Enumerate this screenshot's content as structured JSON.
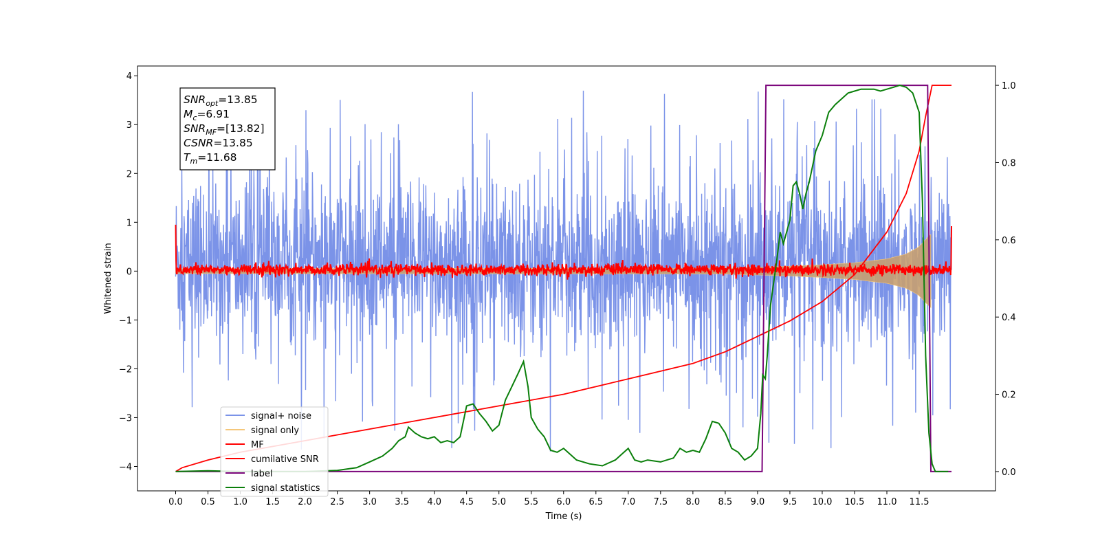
{
  "chart_data": {
    "type": "line",
    "xlabel": "Time (s)",
    "ylabel": "Whitened strain",
    "xlim": [
      -0.59,
      12.68
    ],
    "ylim": [
      -4.5,
      4.2
    ],
    "y2lim": [
      -0.05,
      1.05
    ],
    "x_ticks": [
      "0.0",
      "0.5",
      "1.0",
      "1.5",
      "2.0",
      "2.5",
      "3.0",
      "3.5",
      "4.0",
      "4.5",
      "5.0",
      "5.5",
      "6.0",
      "6.5",
      "7.0",
      "7.5",
      "8.0",
      "8.5",
      "9.0",
      "9.5",
      "10.0",
      "10.5",
      "11.0",
      "11.5"
    ],
    "y_ticks": [
      "−4",
      "−3",
      "−2",
      "−1",
      "0",
      "1",
      "2",
      "3",
      "4"
    ],
    "y2_ticks": [
      "0.0",
      "0.2",
      "0.4",
      "0.6",
      "0.8",
      "1.0"
    ],
    "legend_position": "lower left",
    "stats_box": [
      {
        "base": "SNR",
        "sub": "opt",
        "value": "=13.85"
      },
      {
        "base": "M",
        "sub": "c",
        "value": "=6.91"
      },
      {
        "base": "SNR",
        "sub": "MF",
        "value": "=[13.82]"
      },
      {
        "base": "CSNR",
        "sub": "",
        "value": "=13.85"
      },
      {
        "base": "T",
        "sub": "m",
        "value": "=11.68"
      }
    ],
    "series": [
      {
        "name": "signal+ noise",
        "color": "#7b93e8",
        "axis": "left",
        "description_values": {
          "x_range": [
            0.0,
            12.0
          ],
          "envelope": [
            -3.8,
            3.8
          ],
          "typical_band": [
            -1.6,
            1.9
          ]
        }
      },
      {
        "name": "signal only",
        "color": "#f5c77a",
        "axis": "left",
        "envelope": {
          "x": [
            0,
            8.5,
            9.0,
            9.5,
            10.0,
            10.5,
            11.0,
            11.3,
            11.5,
            11.6,
            11.68
          ],
          "amplitude": [
            0.05,
            0.06,
            0.08,
            0.1,
            0.13,
            0.17,
            0.25,
            0.35,
            0.5,
            0.65,
            0.75
          ]
        }
      },
      {
        "name": "MF",
        "color": "#ff0000",
        "axis": "left",
        "description_values": {
          "x_range": [
            0.0,
            12.0
          ],
          "band": [
            -0.1,
            0.15
          ]
        }
      },
      {
        "name": "cumilative SNR",
        "color": "#ff0000",
        "axis": "right",
        "x": [
          0,
          0.1,
          0.5,
          1.0,
          2.0,
          3.0,
          4.0,
          5.0,
          6.0,
          7.0,
          8.0,
          8.5,
          9.0,
          9.5,
          10.0,
          10.5,
          11.0,
          11.3,
          11.5,
          11.6,
          11.7,
          11.8,
          12.0
        ],
        "y": [
          0.0,
          0.01,
          0.03,
          0.05,
          0.08,
          0.11,
          0.14,
          0.17,
          0.2,
          0.24,
          0.28,
          0.31,
          0.35,
          0.39,
          0.44,
          0.51,
          0.62,
          0.72,
          0.83,
          0.92,
          1.0,
          1.0,
          1.0
        ]
      },
      {
        "name": "label",
        "color": "#7b057b",
        "axis": "right",
        "x": [
          0,
          9.07,
          9.13,
          11.63,
          11.68,
          12.0
        ],
        "y": [
          0,
          0,
          1,
          1,
          0,
          0
        ]
      },
      {
        "name": "signal statistics",
        "color": "#0a7f0a",
        "axis": "right",
        "x": [
          0,
          0.5,
          1.0,
          1.5,
          2.0,
          2.5,
          2.8,
          3.0,
          3.2,
          3.35,
          3.45,
          3.55,
          3.6,
          3.7,
          3.8,
          3.9,
          4.0,
          4.1,
          4.2,
          4.3,
          4.4,
          4.5,
          4.6,
          4.7,
          4.8,
          4.9,
          5.0,
          5.1,
          5.2,
          5.3,
          5.38,
          5.45,
          5.5,
          5.6,
          5.7,
          5.8,
          5.9,
          6.0,
          6.2,
          6.4,
          6.6,
          6.8,
          6.9,
          7.0,
          7.1,
          7.2,
          7.3,
          7.5,
          7.7,
          7.8,
          7.9,
          8.0,
          8.1,
          8.2,
          8.3,
          8.4,
          8.5,
          8.6,
          8.7,
          8.8,
          8.9,
          9.0,
          9.05,
          9.08,
          9.12,
          9.15,
          9.2,
          9.3,
          9.35,
          9.4,
          9.5,
          9.55,
          9.6,
          9.65,
          9.7,
          9.75,
          9.8,
          9.9,
          10.0,
          10.1,
          10.2,
          10.3,
          10.4,
          10.5,
          10.6,
          10.7,
          10.8,
          10.9,
          11.0,
          11.1,
          11.2,
          11.3,
          11.4,
          11.5,
          11.55,
          11.6,
          11.65,
          11.7,
          11.75,
          11.8,
          11.9,
          11.95
        ],
        "y": [
          0.0,
          0.002,
          0.0,
          0.0,
          0.0,
          0.003,
          0.01,
          0.025,
          0.04,
          0.06,
          0.08,
          0.09,
          0.115,
          0.1,
          0.09,
          0.085,
          0.09,
          0.075,
          0.08,
          0.075,
          0.09,
          0.17,
          0.175,
          0.15,
          0.13,
          0.105,
          0.12,
          0.185,
          0.22,
          0.255,
          0.285,
          0.22,
          0.14,
          0.11,
          0.09,
          0.055,
          0.05,
          0.06,
          0.03,
          0.02,
          0.015,
          0.03,
          0.045,
          0.06,
          0.03,
          0.025,
          0.03,
          0.025,
          0.035,
          0.06,
          0.05,
          0.055,
          0.05,
          0.085,
          0.13,
          0.125,
          0.1,
          0.06,
          0.05,
          0.03,
          0.04,
          0.06,
          0.15,
          0.25,
          0.24,
          0.3,
          0.43,
          0.55,
          0.62,
          0.59,
          0.65,
          0.74,
          0.75,
          0.72,
          0.68,
          0.72,
          0.75,
          0.83,
          0.87,
          0.93,
          0.95,
          0.965,
          0.98,
          0.985,
          0.99,
          0.99,
          0.99,
          0.985,
          0.99,
          0.995,
          1.0,
          0.995,
          0.98,
          0.93,
          0.7,
          0.3,
          0.1,
          0.02,
          0.0,
          0.0,
          0.0,
          0.0
        ]
      }
    ]
  }
}
